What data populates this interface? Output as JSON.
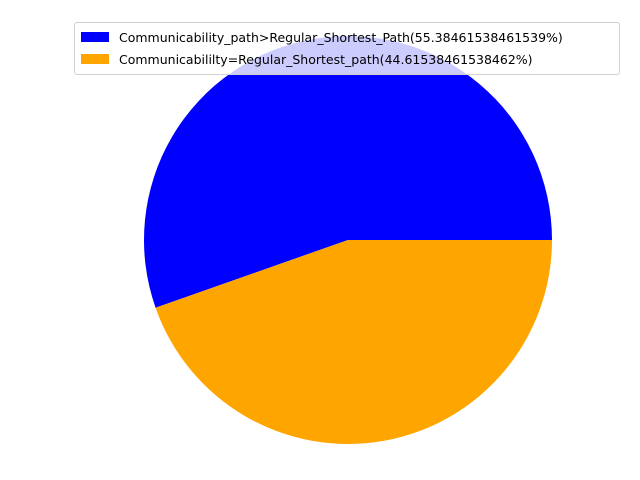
{
  "chart_data": {
    "type": "pie",
    "title": "",
    "slices": [
      {
        "label": "Communicability_path>Regular_Shortest_Path(55.38461538461539%)",
        "value": 55.38461538461539,
        "color": "#0000ff"
      },
      {
        "label": "Communicabililty=Regular_Shortest_path(44.61538461538462%)",
        "value": 44.61538461538462,
        "color": "#ffa500"
      }
    ],
    "start_angle_deg": 0,
    "direction": "counterclockwise",
    "legend_position": "top-right"
  }
}
